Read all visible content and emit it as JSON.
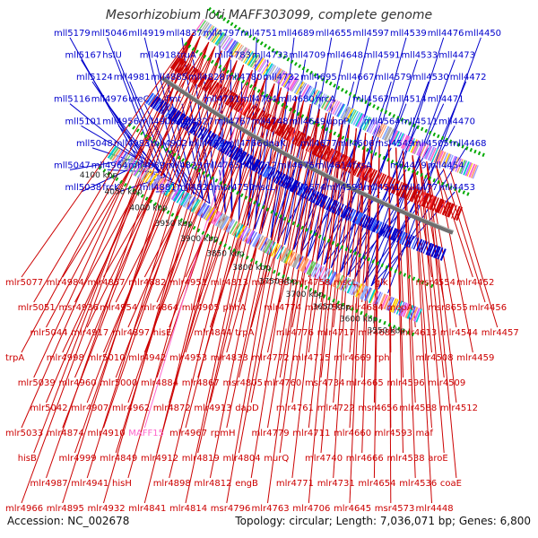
{
  "header": {
    "title": "Mesorhizobium loti MAFF303099, complete genome"
  },
  "footer": {
    "accession": "Accession: NC_002678",
    "summary": "Topology: circular; Length: 7,036,071 bp; Genes: 6,800"
  },
  "colors": {
    "plus_strand": "#0000cc",
    "minus_strand": "#cc0000",
    "highlight": "#ff66cc",
    "backbone": "#6e6e6e",
    "tick": "#00aa00"
  },
  "kbp_ticks": [
    "4100 kbp",
    "4050 kbp",
    "4000 kbp",
    "3950 kbp",
    "3900 kbp",
    "3850 kbp",
    "3800 kbp",
    "3750 kbp",
    "3700 kbp",
    "3650 kbp",
    "3600 kbp",
    "3550 kbp"
  ],
  "plus_labels": [
    "mll5179",
    "mll5167",
    "mll5124",
    "mll5116",
    "mll5101",
    "mll5048",
    "mll5047",
    "mll5038",
    "mll5046",
    "hslU",
    "mll4981",
    "mll4976",
    "mll4956",
    "mll4983",
    "mll4964",
    "frcK",
    "mll4919",
    "mll4918",
    "mll4885",
    "ureC",
    "mll4906",
    "mll4902",
    "mll4889",
    "mll4881",
    "mll4837",
    "truA",
    "mll4828",
    "fmt",
    "mll4827",
    "mll4799",
    "mll4823",
    "mll4820",
    "mll4797",
    "mll4783",
    "mll4780",
    "mll4791",
    "mll4767",
    "mll4766",
    "mll4765",
    "msr4750",
    "mll4751",
    "mll4733",
    "mll4732",
    "mll4764",
    "mll4748",
    "dnaK",
    "mll4712",
    "mscL",
    "mll4689",
    "mll4709",
    "mll4695",
    "mll4680",
    "mll4649",
    "mll4677",
    "mll4676",
    "mll4674",
    "mll4655",
    "mll4648",
    "mll4667",
    "hrcA",
    "uppP",
    "mll4606",
    "mll4614",
    "mll4599",
    "mll4597",
    "mll4591",
    "mll4579",
    "mll4567",
    "mll4564",
    "msl4549",
    "fxsA",
    "mll4541",
    "mll4539",
    "mll4533",
    "mll4530",
    "mll4514",
    "mll4511",
    "mll4505",
    "mll4479",
    "mll4477",
    "mll4476",
    "mll4473",
    "mll4472",
    "mll4471",
    "mll4470",
    "mll4468",
    "mll4454",
    "mll4453",
    "mll4450"
  ],
  "minus_labels": [
    "mlr5077",
    "mlr5051",
    "mlr5044",
    "trpA",
    "mlr5039",
    "mlr5042",
    "mlr5033",
    "hisB",
    "mlr4987",
    "mlr4966",
    "mlr4984",
    "msr4936",
    "mlr4917",
    "mlr4998",
    "mlr4960",
    "mlr4907",
    "mlr4874",
    "mlr4999",
    "mlr4941",
    "mlr4895",
    "mlr4857",
    "mlr4954",
    "mlr4897",
    "mlr5010",
    "mlr5000",
    "mlr4962",
    "mlr4910",
    "mlr4849",
    "hisH",
    "mlr4932",
    "mlr4882",
    "mlr4864",
    "hisE",
    "mlr4942",
    "mlr4884",
    "mlr4872",
    "MAFF15",
    "mlr4912",
    "mlr4898",
    "mlr4841",
    "mlr4951",
    "mlr4905",
    "mlr4844",
    "mlr4953",
    "mlr4867",
    "mlr4913",
    "mlr4967",
    "mlr4819",
    "mlr4812",
    "mlr4814",
    "mlr4813",
    "phhA",
    "trpA",
    "mlr4833",
    "msr4805",
    "dapD",
    "rpmH",
    "mlr4804",
    "engB",
    "msr4796",
    "mlr4788",
    "mlr4774",
    "mlr4776",
    "mlr4772",
    "mlr4760",
    "mlr4761",
    "mlr4779",
    "murQ",
    "mlr4771",
    "mlr4763",
    "mlr4758",
    "mlr4759",
    "mlr4717",
    "mlr4715",
    "msr4734",
    "mlr4722",
    "mlr4711",
    "mlr4740",
    "mlr4731",
    "mlr4706",
    "mscL",
    "mlr4684",
    "mlr4683",
    "mlr4669",
    "mlr4665",
    "msr4656",
    "mlr4660",
    "mlr4666",
    "mlr4654",
    "mlr4645",
    "glk",
    "mepA",
    "mlr4613",
    "rph",
    "mlr4596",
    "mlr4588",
    "mlr4593",
    "mlr4538",
    "mlr4536",
    "msr4573",
    "msr4554",
    "msr8655",
    "mlr4544",
    "mlr4508",
    "mlr4509",
    "mlr4512",
    "maf",
    "aroE",
    "coaE",
    "mlr4448",
    "mlr4452",
    "mlr4456",
    "mlr4457",
    "mlr4459"
  ]
}
